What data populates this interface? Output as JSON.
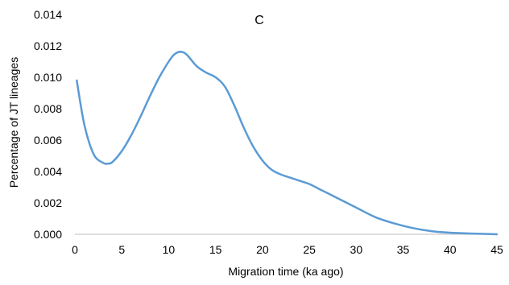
{
  "chart_data": {
    "type": "line",
    "title": "C",
    "xlabel": "Migration time (ka ago)",
    "ylabel": "Percentage of JT lineages",
    "xlim": [
      0,
      45
    ],
    "ylim": [
      0,
      0.014
    ],
    "x_ticks": [
      "0",
      "5",
      "10",
      "15",
      "20",
      "25",
      "30",
      "35",
      "40",
      "45"
    ],
    "y_ticks": [
      "0.000",
      "0.002",
      "0.004",
      "0.006",
      "0.008",
      "0.010",
      "0.012",
      "0.014"
    ],
    "grid": false,
    "line_color": "#5B9BD5",
    "series": [
      {
        "x": [
          0.2,
          1,
          2,
          3,
          3.5,
          4,
          5,
          6,
          7,
          8,
          9,
          10,
          10.5,
          11,
          11.5,
          12,
          13,
          14,
          15,
          16,
          17,
          18,
          19,
          20,
          21,
          22,
          23,
          24,
          25,
          26,
          27,
          28,
          29,
          30,
          32,
          34,
          36,
          38,
          40,
          42,
          44,
          45
        ],
        "y": [
          0.0098,
          0.007,
          0.0051,
          0.00455,
          0.0045,
          0.0046,
          0.0053,
          0.0063,
          0.0075,
          0.0088,
          0.01,
          0.011,
          0.0114,
          0.0116,
          0.0116,
          0.0114,
          0.0107,
          0.0103,
          0.01,
          0.0094,
          0.0082,
          0.0068,
          0.0056,
          0.0047,
          0.0041,
          0.0038,
          0.0036,
          0.0034,
          0.0032,
          0.0029,
          0.0026,
          0.0023,
          0.002,
          0.0017,
          0.0011,
          0.0007,
          0.0004,
          0.0002,
          0.0001,
          5e-05,
          2e-05,
          0.0
        ]
      }
    ]
  }
}
